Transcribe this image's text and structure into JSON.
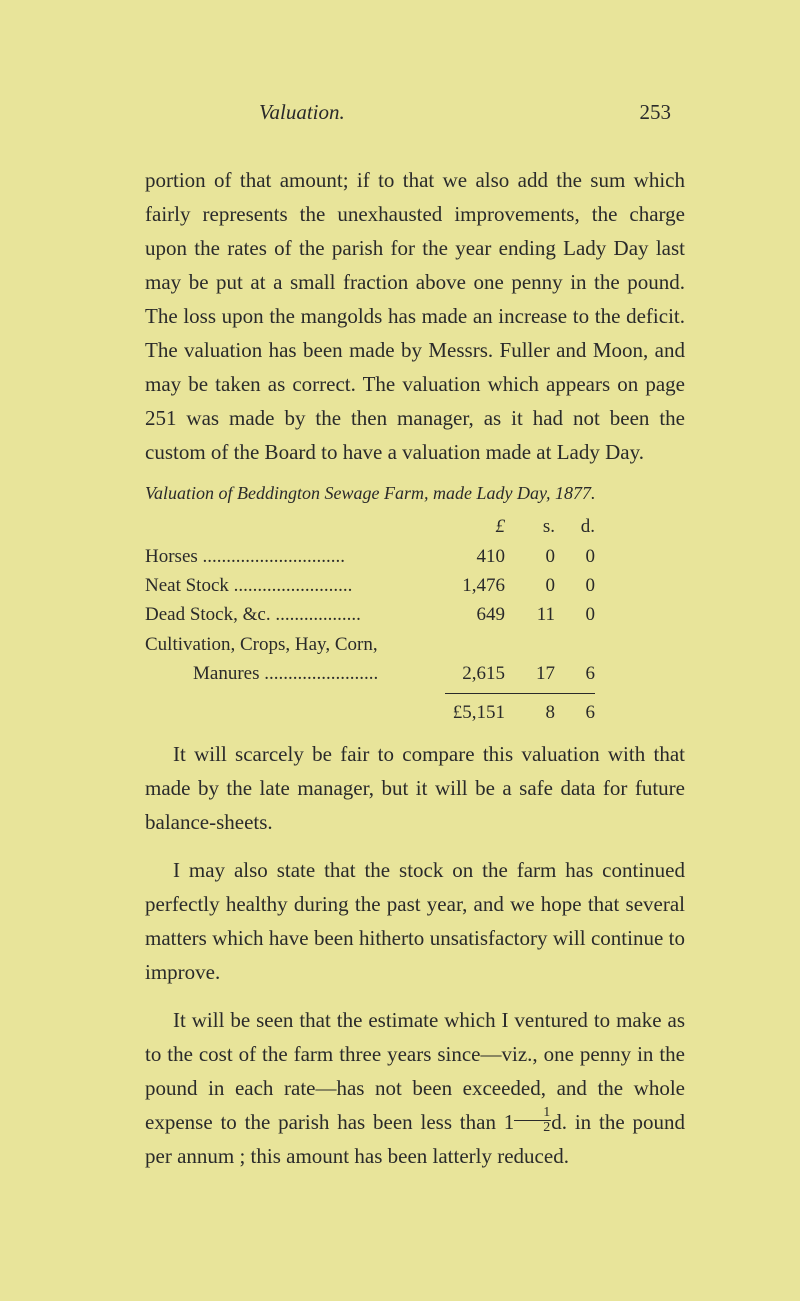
{
  "header": {
    "title": "Valuation.",
    "page_number": "253"
  },
  "paragraphs": {
    "p1": "portion of that amount; if to that we also add the sum which fairly represents the unexhausted improvements, the charge upon the rates of the parish for the year ending Lady Day last may be put at a small fraction above one penny in the pound. The loss upon the mangolds has made an increase to the deficit. The valuation has been made by Messrs. Fuller and Moon, and may be taken as correct. The valuation which appears on page 251 was made by the then manager, as it had not been the custom of the Board to have a valua­tion made at Lady Day.",
    "p2a": "It will scarcely be fair to compare this valua­tion with that made by the late manager, but it will be a safe data for future balance-sheets.",
    "p3": "I may also state that the stock on the farm has continued perfectly healthy during the past year, and we hope that several matters which have been hitherto unsatisfactory will continue to improve.",
    "p4a": "It will be seen that the estimate which I ven­tured to make as to the cost of the farm three years since—viz., one penny in the pound in each rate—has not been exceeded, and the whole expense to the parish has been less than 1",
    "p4b": "d. in the pound per annum ; this amount has been latterly reduced."
  },
  "valuation": {
    "title": "Valuation of Beddington Sewage Farm, made Lady Day, 1877.",
    "col_l": "£",
    "col_s": "s.",
    "col_d": "d.",
    "rows": {
      "r0": {
        "label": "Horses ..............................",
        "l": "410",
        "s": "0",
        "d": "0"
      },
      "r1": {
        "label": "Neat Stock .........................",
        "l": "1,476",
        "s": "0",
        "d": "0"
      },
      "r2": {
        "label": "Dead Stock, &c. ..................",
        "l": "649",
        "s": "11",
        "d": "0"
      },
      "r3": {
        "label": "Cultivation, Crops, Hay, Corn,",
        "l": "",
        "s": "",
        "d": ""
      },
      "r4": {
        "label": "Manures ........................",
        "l": "2,615",
        "s": "17",
        "d": "6"
      }
    },
    "total": {
      "label": "",
      "l": "£5,151",
      "s": "8",
      "d": "6"
    }
  },
  "fraction": {
    "num": "1",
    "den": "2"
  }
}
